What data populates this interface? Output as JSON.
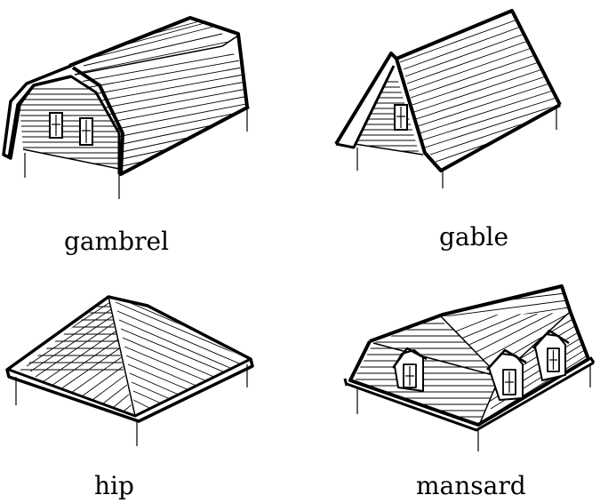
{
  "roof_types": [
    {
      "id": "gambrel",
      "label": "gambrel"
    },
    {
      "id": "gable",
      "label": "gable"
    },
    {
      "id": "hip",
      "label": "hip"
    },
    {
      "id": "mansard",
      "label": "mansard"
    }
  ],
  "colors": {
    "line": "#000000",
    "fill": "#ffffff",
    "background": "#ffffff"
  }
}
